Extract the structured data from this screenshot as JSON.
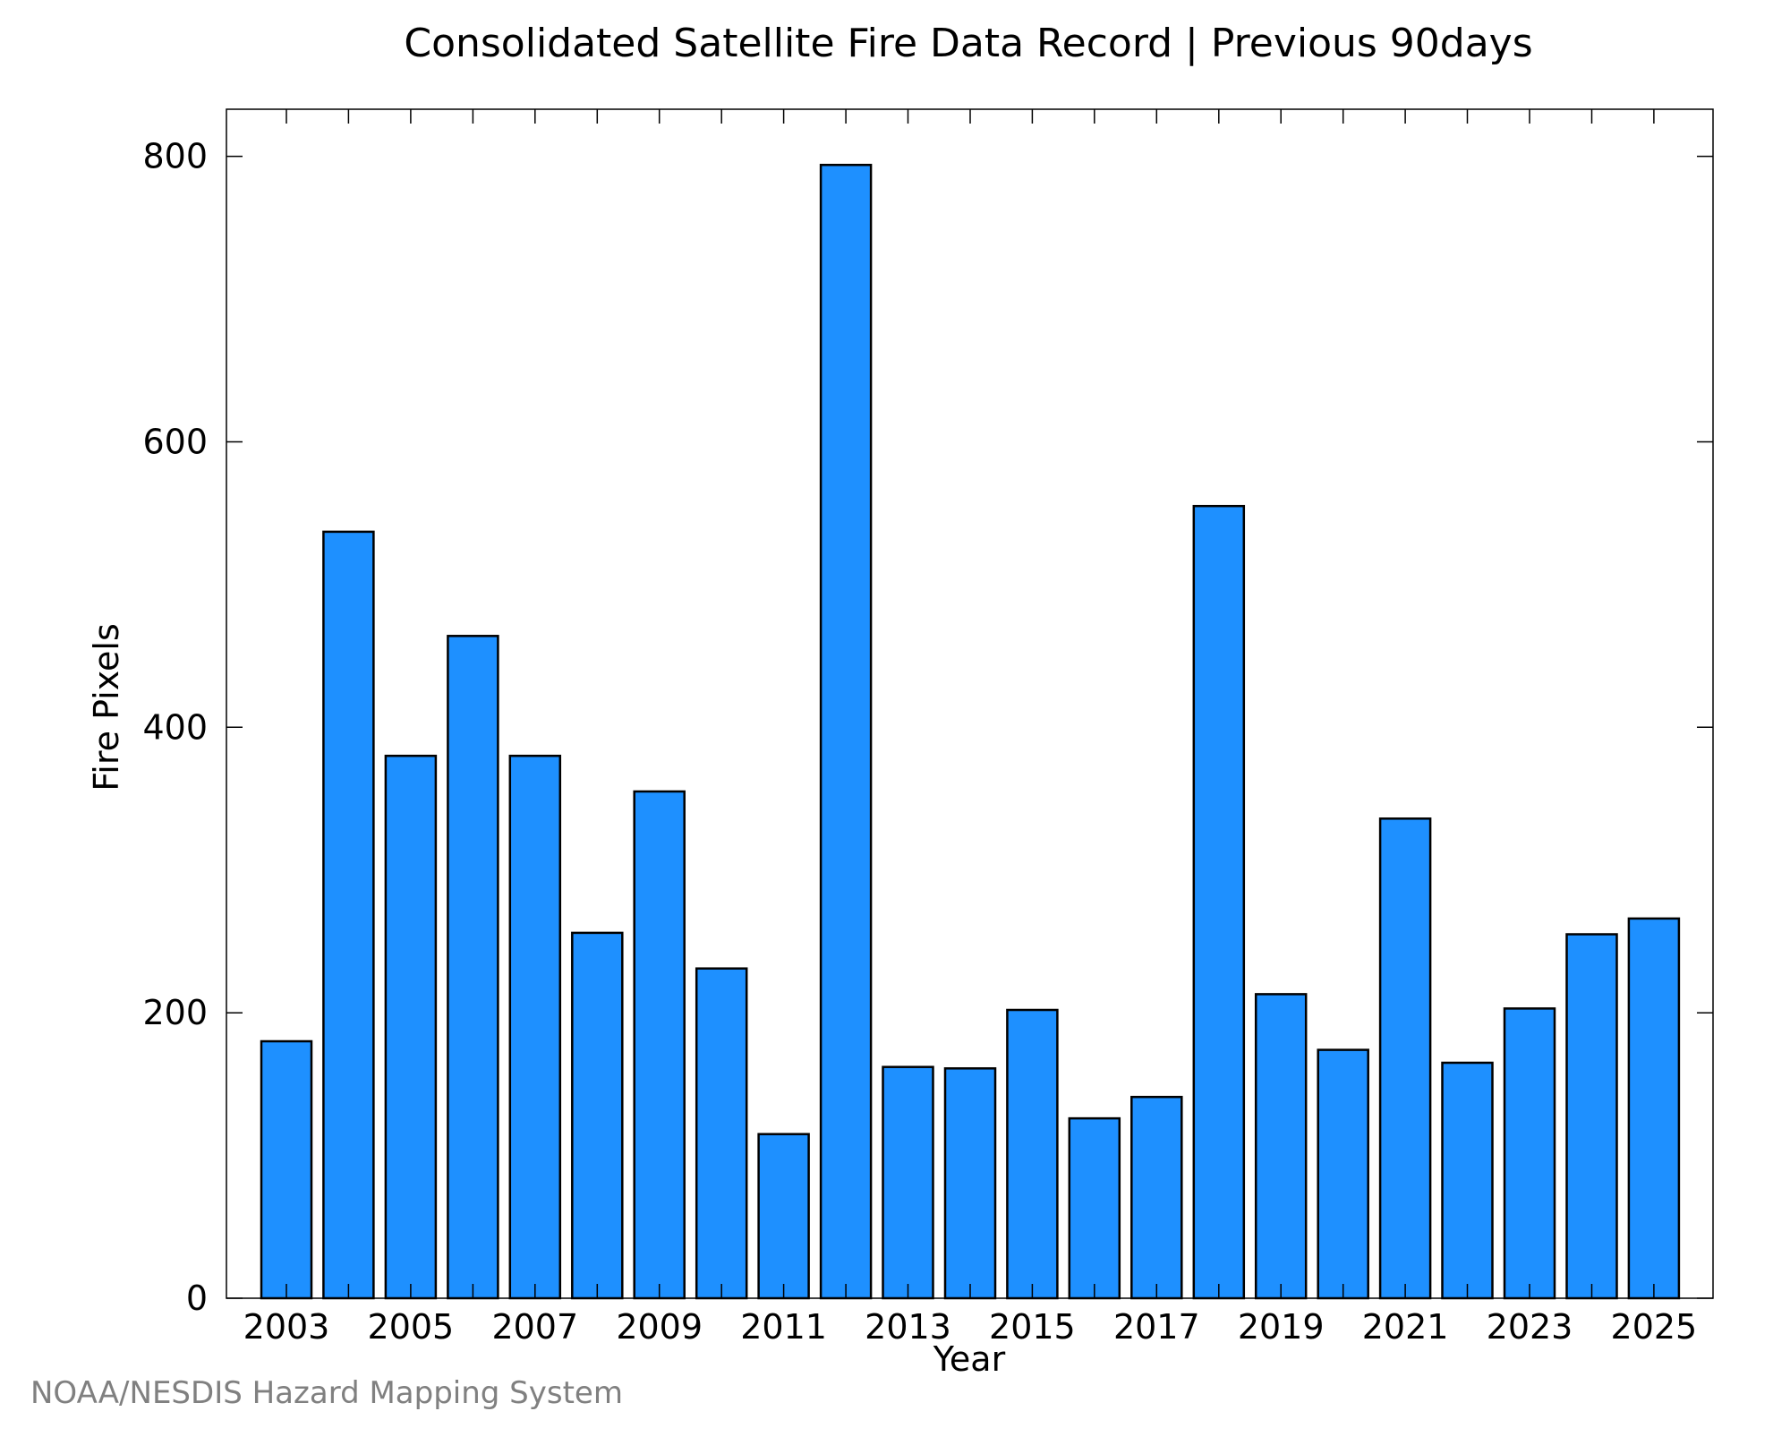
{
  "chart_data": {
    "type": "bar",
    "title": "Consolidated Satellite Fire Data Record | Previous 90days",
    "xlabel": "Year",
    "ylabel": "Fire Pixels",
    "categories": [
      "2003",
      "2004",
      "2005",
      "2006",
      "2007",
      "2008",
      "2009",
      "2010",
      "2011",
      "2012",
      "2013",
      "2014",
      "2015",
      "2016",
      "2017",
      "2018",
      "2019",
      "2020",
      "2021",
      "2022",
      "2023",
      "2024",
      "2025"
    ],
    "values": [
      180,
      537,
      380,
      464,
      380,
      256,
      355,
      231,
      115,
      794,
      162,
      161,
      202,
      126,
      141,
      555,
      213,
      174,
      336,
      165,
      203,
      255,
      266
    ],
    "x_tick_labels": [
      "2003",
      "2005",
      "2007",
      "2009",
      "2011",
      "2013",
      "2015",
      "2017",
      "2019",
      "2021",
      "2023",
      "2025"
    ],
    "y_ticks": [
      0,
      200,
      400,
      600,
      800
    ],
    "ylim": [
      0,
      833
    ],
    "grid": false,
    "legend": "none",
    "bar_color": "#1e90ff",
    "bar_edge_color": "#000000"
  },
  "credit": "NOAA/NESDIS Hazard Mapping System"
}
